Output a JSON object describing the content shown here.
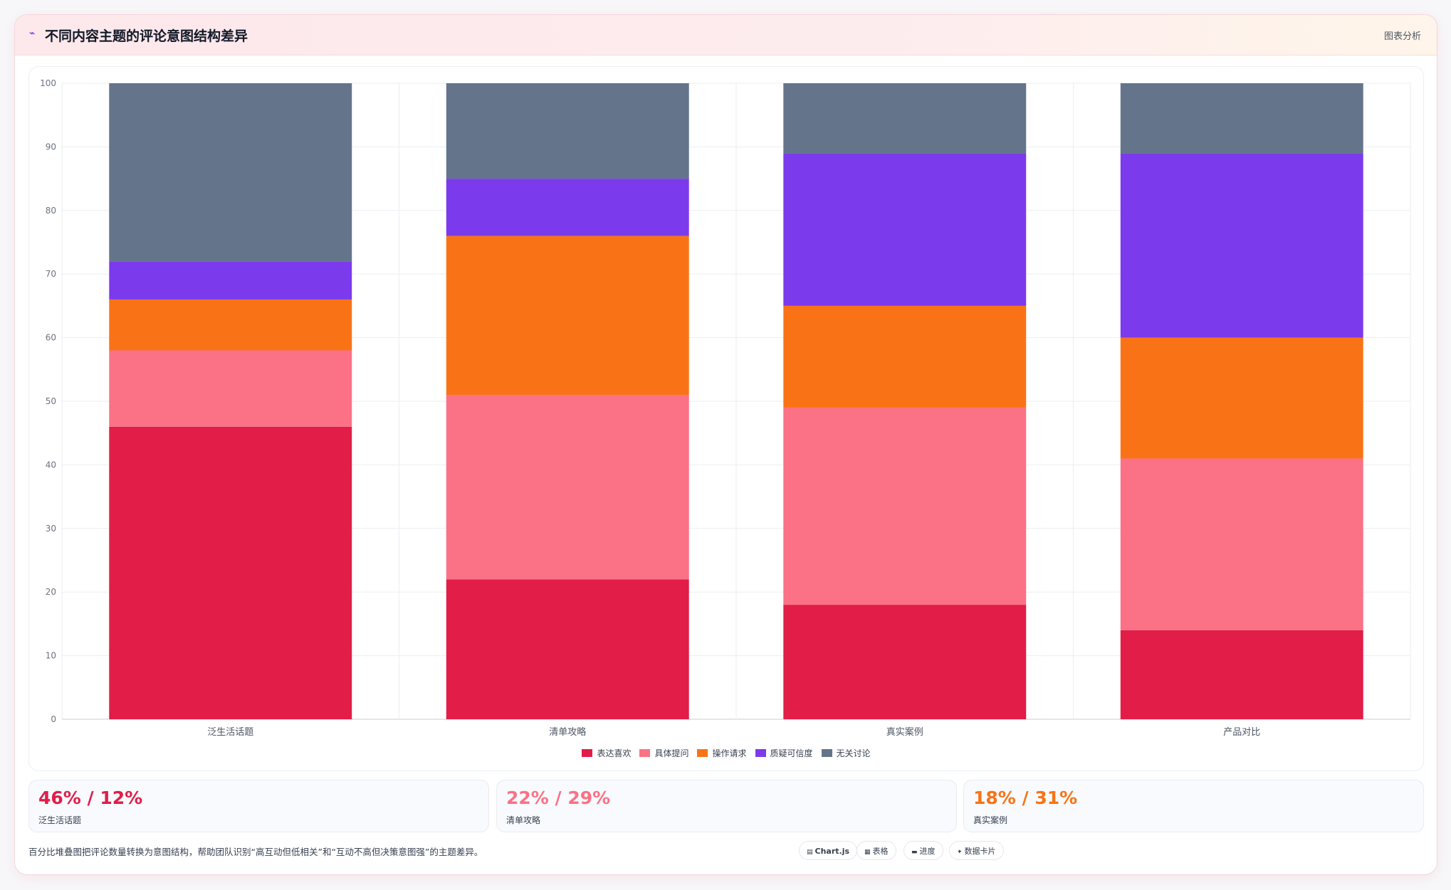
{
  "header": {
    "title": "不同内容主题的评论意图结构差异",
    "tag": "图表分析",
    "icon": "trend-icon"
  },
  "chart_data": {
    "type": "bar",
    "stacked": true,
    "categories": [
      "泛生活话题",
      "清单攻略",
      "真实案例",
      "产品对比"
    ],
    "series": [
      {
        "name": "表达喜欢",
        "color": "#e11d48",
        "values": [
          46,
          22,
          18,
          14
        ]
      },
      {
        "name": "具体提问",
        "color": "#fb7185",
        "values": [
          12,
          29,
          31,
          27
        ]
      },
      {
        "name": "操作请求",
        "color": "#f97316",
        "values": [
          8,
          25,
          16,
          19
        ]
      },
      {
        "name": "质疑可信度",
        "color": "#7c3aed",
        "values": [
          6,
          9,
          24,
          29
        ]
      },
      {
        "name": "无关讨论",
        "color": "#64748b",
        "values": [
          28,
          15,
          11,
          11
        ]
      }
    ],
    "ylim": [
      0,
      100
    ],
    "yticks": [
      0,
      10,
      20,
      30,
      40,
      50,
      60,
      70,
      80,
      90,
      100
    ],
    "grid": true,
    "legend": "bottom"
  },
  "stats": [
    {
      "value": "46% / 12%",
      "label": "泛生活话题",
      "color": "#e11d48"
    },
    {
      "value": "22% / 29%",
      "label": "清单攻略",
      "color": "#fb7185"
    },
    {
      "value": "18% / 31%",
      "label": "真实案例",
      "color": "#f97316"
    }
  ],
  "footnote": "百分比堆叠图把评论数量转换为意图结构，帮助团队识别“高互动但低相关”和“互动不高但决策意图强”的主题差异。",
  "pills": [
    {
      "icon": "▤",
      "label": "Chart.js",
      "bold": true
    },
    {
      "icon": "▦",
      "label": "表格",
      "bold": false
    },
    {
      "icon": "▬",
      "label": "进度",
      "bold": false
    },
    {
      "icon": "✦",
      "label": "数据卡片",
      "bold": false
    }
  ]
}
